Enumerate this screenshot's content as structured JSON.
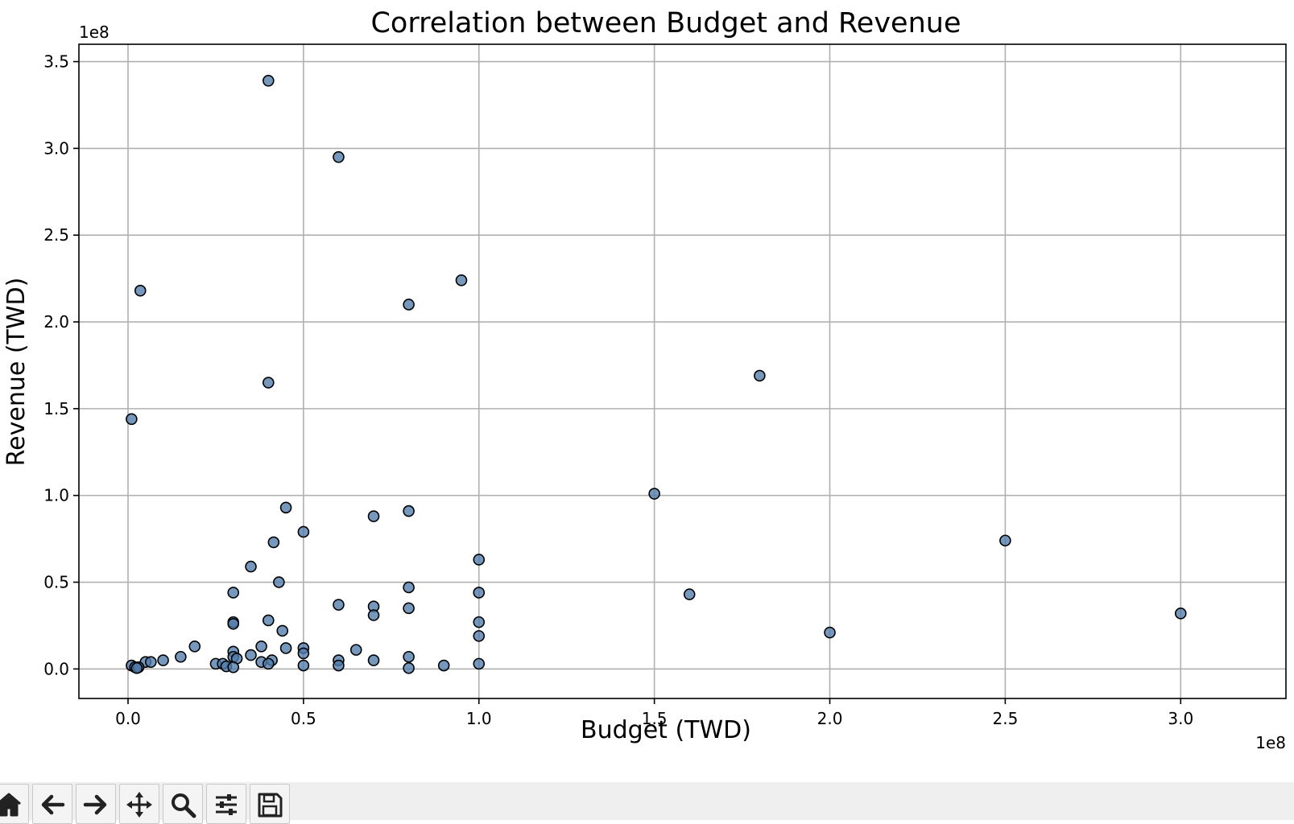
{
  "chart_data": {
    "type": "scatter",
    "title": "Correlation between Budget and Revenue",
    "xlabel": "Budget (TWD)",
    "ylabel": "Revenue (TWD)",
    "x_offset_label": "1e8",
    "y_offset_label": "1e8",
    "xlim": [
      -0.14,
      3.3
    ],
    "ylim": [
      -0.17,
      3.6
    ],
    "x_ticks": [
      0.0,
      0.5,
      1.0,
      1.5,
      2.0,
      2.5,
      3.0
    ],
    "x_tick_labels": [
      "0.0",
      "0.5",
      "1.0",
      "1.5",
      "2.0",
      "2.5",
      "3.0"
    ],
    "y_ticks": [
      0.0,
      0.5,
      1.0,
      1.5,
      2.0,
      2.5,
      3.0,
      3.5
    ],
    "y_tick_labels": [
      "0.0",
      "0.5",
      "1.0",
      "1.5",
      "2.0",
      "2.5",
      "3.0",
      "3.5"
    ],
    "grid": true,
    "marker_color": "#4f7bab",
    "marker_edge_color": "#000000",
    "points": [
      {
        "x": 0.4,
        "y": 3.39
      },
      {
        "x": 0.6,
        "y": 2.95
      },
      {
        "x": 0.035,
        "y": 2.18
      },
      {
        "x": 0.95,
        "y": 2.24
      },
      {
        "x": 0.8,
        "y": 2.1
      },
      {
        "x": 0.4,
        "y": 1.65
      },
      {
        "x": 1.8,
        "y": 1.69
      },
      {
        "x": 0.01,
        "y": 1.44
      },
      {
        "x": 1.5,
        "y": 1.01
      },
      {
        "x": 0.45,
        "y": 0.93
      },
      {
        "x": 0.7,
        "y": 0.88
      },
      {
        "x": 0.8,
        "y": 0.91
      },
      {
        "x": 0.5,
        "y": 0.79
      },
      {
        "x": 0.415,
        "y": 0.73
      },
      {
        "x": 2.5,
        "y": 0.74
      },
      {
        "x": 1.0,
        "y": 0.63
      },
      {
        "x": 0.35,
        "y": 0.59
      },
      {
        "x": 0.43,
        "y": 0.5
      },
      {
        "x": 0.8,
        "y": 0.47
      },
      {
        "x": 0.3,
        "y": 0.44
      },
      {
        "x": 1.0,
        "y": 0.44
      },
      {
        "x": 1.6,
        "y": 0.43
      },
      {
        "x": 0.6,
        "y": 0.37
      },
      {
        "x": 0.7,
        "y": 0.36
      },
      {
        "x": 0.8,
        "y": 0.35
      },
      {
        "x": 3.0,
        "y": 0.32
      },
      {
        "x": 0.7,
        "y": 0.31
      },
      {
        "x": 0.4,
        "y": 0.28
      },
      {
        "x": 0.3,
        "y": 0.27
      },
      {
        "x": 1.0,
        "y": 0.27
      },
      {
        "x": 0.3,
        "y": 0.26
      },
      {
        "x": 0.44,
        "y": 0.22
      },
      {
        "x": 2.0,
        "y": 0.21
      },
      {
        "x": 1.0,
        "y": 0.19
      },
      {
        "x": 0.19,
        "y": 0.13
      },
      {
        "x": 0.38,
        "y": 0.13
      },
      {
        "x": 0.45,
        "y": 0.12
      },
      {
        "x": 0.5,
        "y": 0.12
      },
      {
        "x": 0.65,
        "y": 0.11
      },
      {
        "x": 0.3,
        "y": 0.1
      },
      {
        "x": 0.5,
        "y": 0.09
      },
      {
        "x": 0.35,
        "y": 0.08
      },
      {
        "x": 0.3,
        "y": 0.07
      },
      {
        "x": 0.8,
        "y": 0.07
      },
      {
        "x": 0.15,
        "y": 0.07
      },
      {
        "x": 0.31,
        "y": 0.06
      },
      {
        "x": 0.41,
        "y": 0.05
      },
      {
        "x": 0.7,
        "y": 0.05
      },
      {
        "x": 0.1,
        "y": 0.05
      },
      {
        "x": 0.6,
        "y": 0.05
      },
      {
        "x": 0.05,
        "y": 0.04
      },
      {
        "x": 0.065,
        "y": 0.04
      },
      {
        "x": 0.38,
        "y": 0.04
      },
      {
        "x": 0.4,
        "y": 0.03
      },
      {
        "x": 0.25,
        "y": 0.03
      },
      {
        "x": 0.27,
        "y": 0.03
      },
      {
        "x": 1.0,
        "y": 0.03
      },
      {
        "x": 0.6,
        "y": 0.02
      },
      {
        "x": 0.9,
        "y": 0.02
      },
      {
        "x": 0.01,
        "y": 0.02
      },
      {
        "x": 0.5,
        "y": 0.02
      },
      {
        "x": 0.28,
        "y": 0.015
      },
      {
        "x": 0.02,
        "y": 0.01
      },
      {
        "x": 0.03,
        "y": 0.01
      },
      {
        "x": 0.3,
        "y": 0.01
      },
      {
        "x": 0.8,
        "y": 0.005
      },
      {
        "x": 0.025,
        "y": 0.005
      }
    ]
  },
  "toolbar": {
    "buttons": [
      {
        "name": "home-button",
        "icon": "home-icon"
      },
      {
        "name": "back-button",
        "icon": "arrow-left-icon"
      },
      {
        "name": "forward-button",
        "icon": "arrow-right-icon"
      },
      {
        "name": "pan-button",
        "icon": "move-icon"
      },
      {
        "name": "zoom-button",
        "icon": "magnifier-icon"
      },
      {
        "name": "configure-subplots-button",
        "icon": "sliders-icon"
      },
      {
        "name": "save-button",
        "icon": "floppy-disk-icon"
      }
    ]
  }
}
